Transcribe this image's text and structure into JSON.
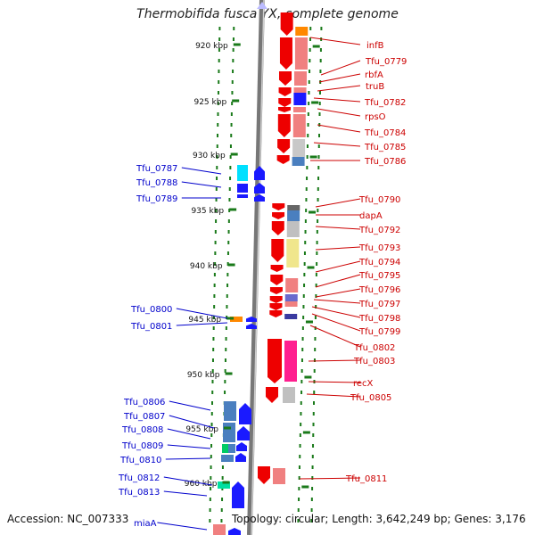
{
  "title": "Thermobifida fusca YX, complete genome",
  "footer": {
    "accession": "Accession: NC_007333",
    "summary": "Topology: circular; Length: 3,642,249 bp; Genes: 3,176"
  },
  "colors": {
    "forward": "#e60000",
    "reverse": "#1a1aff",
    "forward_label": "#cc0000",
    "reverse_label": "#0000cc",
    "tick": "#1a7a1a",
    "backbone": "#888888"
  },
  "ticks": [
    "920 kbp",
    "925 kbp",
    "930 kbp",
    "935 kbp",
    "940 kbp",
    "945 kbp",
    "950 kbp",
    "955 kbp",
    "960 kbp"
  ],
  "forward_labels": [
    "infB",
    "Tfu_0779",
    "rbfA",
    "truB",
    "Tfu_0782",
    "rpsO",
    "Tfu_0784",
    "Tfu_0785",
    "Tfu_0786",
    "Tfu_0790",
    "dapA",
    "Tfu_0792",
    "Tfu_0793",
    "Tfu_0794",
    "Tfu_0795",
    "Tfu_0796",
    "Tfu_0797",
    "Tfu_0798",
    "Tfu_0799",
    "Tfu_0802",
    "Tfu_0803",
    "recX",
    "Tfu_0805",
    "Tfu_0811"
  ],
  "reverse_labels": [
    "Tfu_0787",
    "Tfu_0788",
    "Tfu_0789",
    "Tfu_0800",
    "Tfu_0801",
    "Tfu_0806",
    "Tfu_0807",
    "Tfu_0808",
    "Tfu_0809",
    "Tfu_0810",
    "Tfu_0812",
    "Tfu_0813",
    "miaA"
  ]
}
